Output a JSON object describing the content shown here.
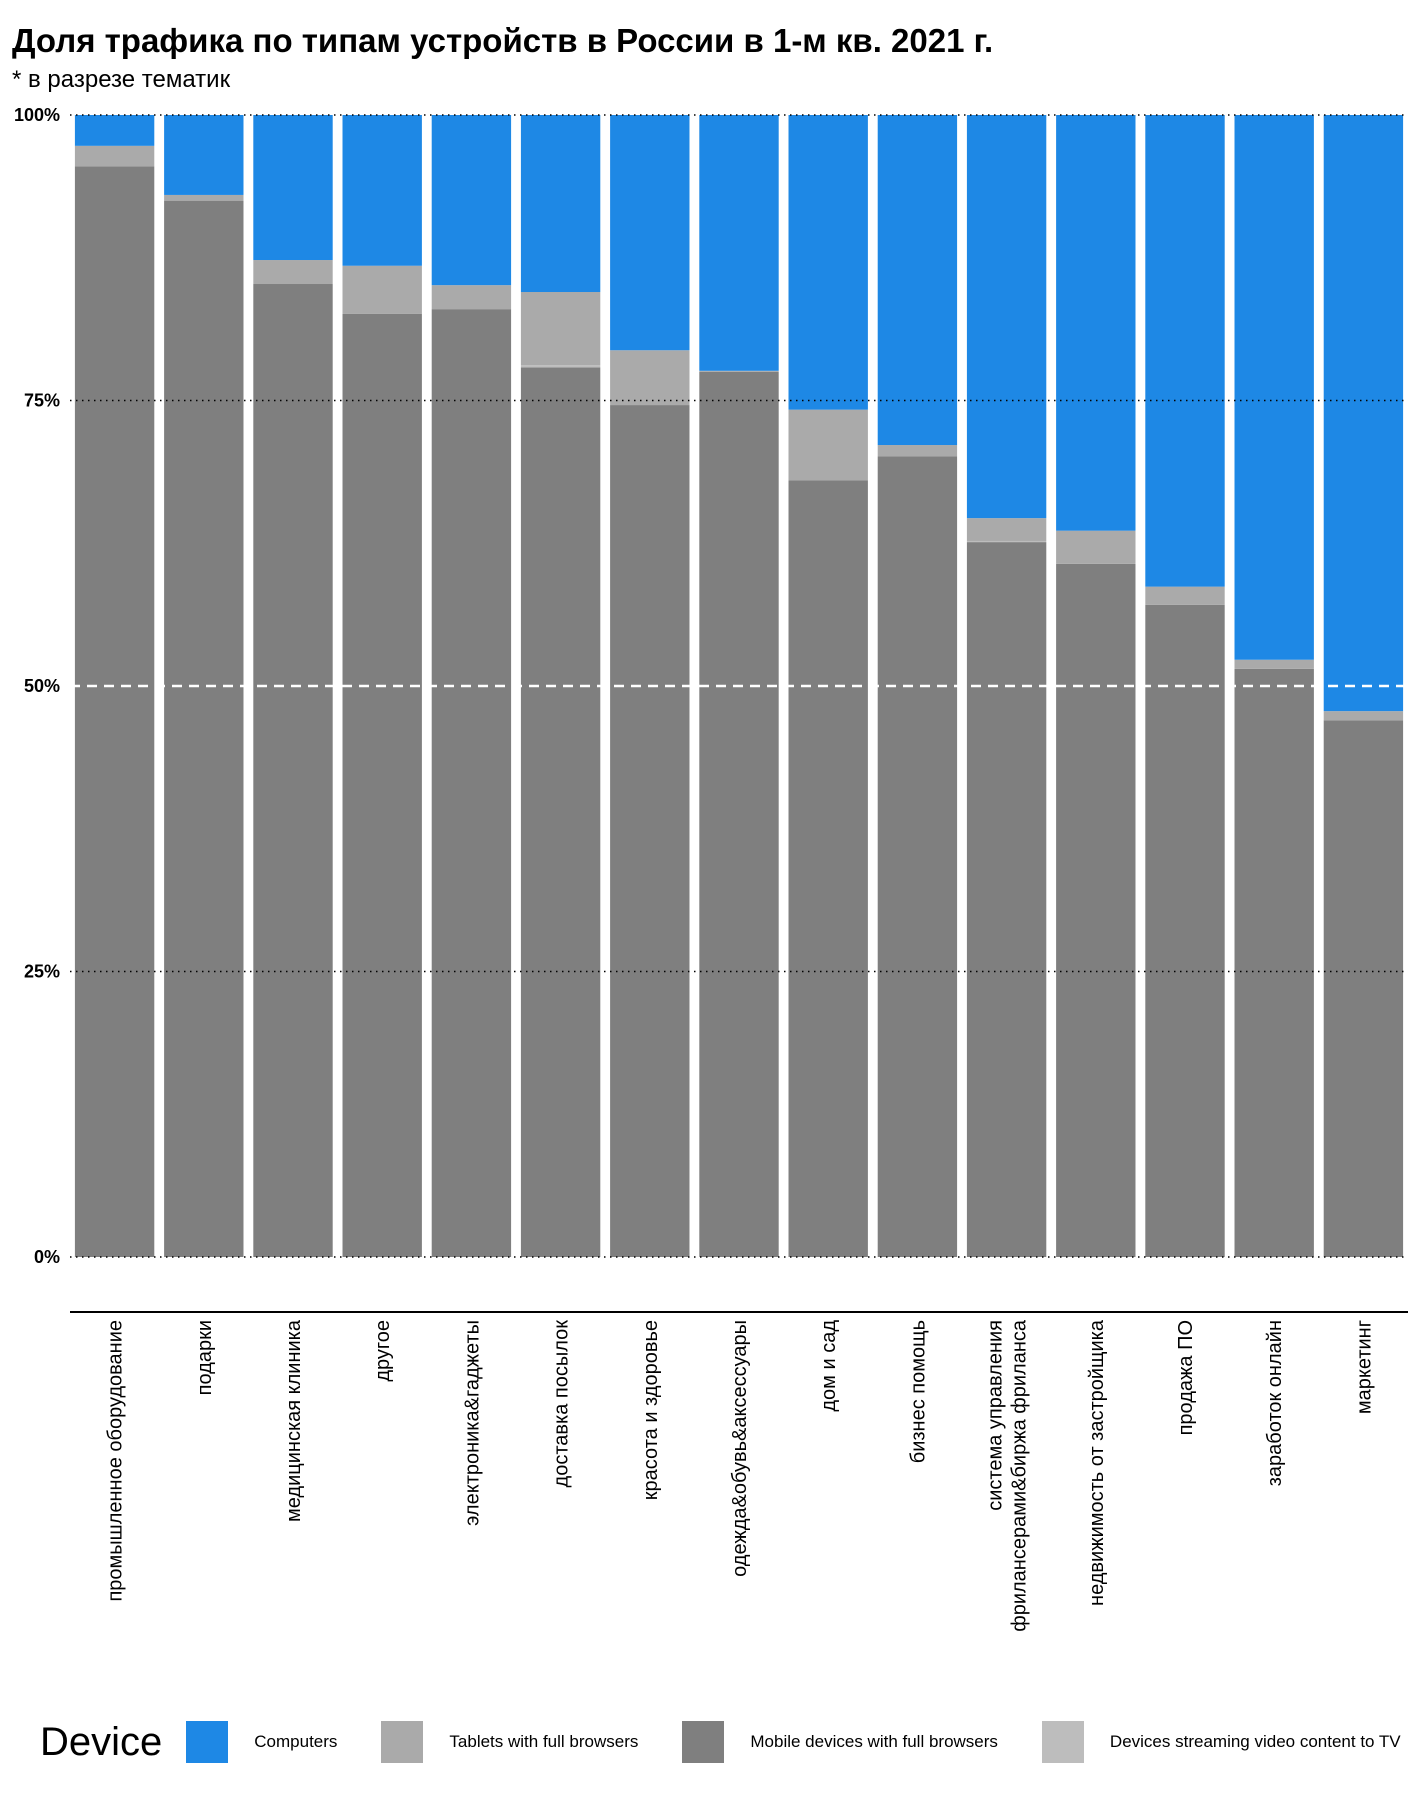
{
  "title": "Доля трафика по типам устройств в России в 1-м кв. 2021 г.",
  "subtitle": "* в разрезе тематик",
  "chart_data": {
    "type": "bar",
    "stacked": true,
    "percent": true,
    "ylim": [
      0,
      100
    ],
    "y_ticks": [
      "0%",
      "25%",
      "50%",
      "75%",
      "100%"
    ],
    "y_tick_values": [
      0,
      25,
      50,
      75,
      100
    ],
    "reference_line": 50,
    "grid": false,
    "legend_position": "bottom",
    "categories": [
      "промышленное оборудование",
      "подарки",
      "медицинская клиника",
      "другое",
      "электроника&гаджеты",
      "доставка посылок",
      "красота и здоровье",
      "одежда&обувь&аксессуары",
      "дом и сад",
      "бизнес помощь",
      "система управления\nфрилансерами&биржа фриланса",
      "недвижимость от застройщика",
      "продажа ПО",
      "заработок онлайн",
      "маркетинг"
    ],
    "series": [
      {
        "name": "Mobile devices with full browsers",
        "color": "#7f7f7f",
        "values": [
          95.5,
          92.5,
          85.2,
          82.6,
          83.0,
          77.9,
          74.6,
          77.5,
          68.0,
          70.1,
          62.6,
          60.7,
          57.1,
          51.5,
          47.0
        ]
      },
      {
        "name": "Devices streaming video content to TV",
        "color": "#bdbdbd",
        "values": [
          0.0,
          0.0,
          0.0,
          0.0,
          0.0,
          0.2,
          0.0,
          0.0,
          0.0,
          0.0,
          0.1,
          0.0,
          0.0,
          0.0,
          0.0
        ]
      },
      {
        "name": "Tablets with full browsers",
        "color": "#aaaaaa",
        "values": [
          1.8,
          0.5,
          2.1,
          4.2,
          2.1,
          6.4,
          4.8,
          0.1,
          6.2,
          1.0,
          2.0,
          2.9,
          1.6,
          0.8,
          0.8
        ]
      },
      {
        "name": "Computers",
        "color": "#1e88e5",
        "values": [
          2.7,
          7.0,
          12.7,
          13.2,
          14.9,
          15.5,
          20.6,
          22.4,
          25.8,
          28.9,
          35.3,
          36.4,
          41.3,
          47.7,
          52.2
        ]
      }
    ]
  },
  "legend": {
    "title": "Device",
    "items": [
      {
        "label": "Computers",
        "color": "#1e88e5"
      },
      {
        "label": "Tablets with full browsers",
        "color": "#aaaaaa"
      },
      {
        "label": "Mobile devices with full browsers",
        "color": "#7f7f7f"
      },
      {
        "label": "Devices streaming video content to TV",
        "color": "#bdbdbd"
      }
    ]
  }
}
